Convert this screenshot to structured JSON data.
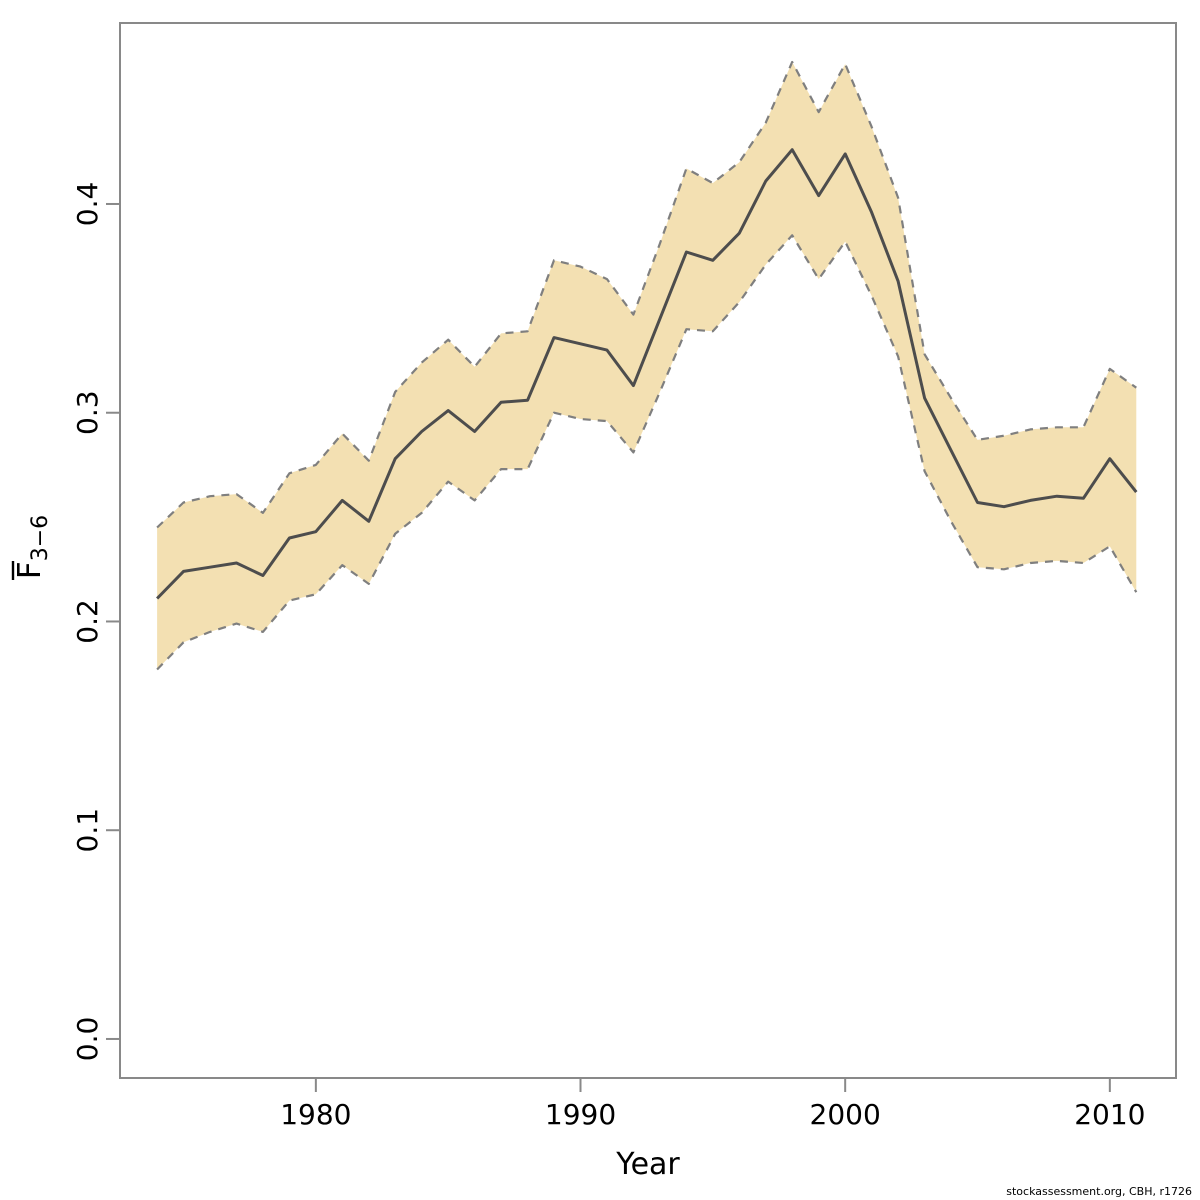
{
  "chart_data": {
    "type": "line",
    "title": "",
    "xlabel": "Year",
    "ylabel": {
      "main": "F",
      "overline": true,
      "sub": "3−6"
    },
    "x_range": [
      1972.6,
      2012.5
    ],
    "y_range": [
      -0.0187,
      0.4867
    ],
    "grid": false,
    "legend_position": "none",
    "x_ticks": {
      "values": [
        1980,
        1990,
        2000,
        2010
      ],
      "labels": [
        "1980",
        "1990",
        "2000",
        "2010"
      ]
    },
    "y_ticks": {
      "values": [
        0.0,
        0.1,
        0.2,
        0.3,
        0.4
      ],
      "labels": [
        "0.0",
        "0.1",
        "0.2",
        "0.3",
        "0.4"
      ]
    },
    "x": [
      1974,
      1975,
      1976,
      1977,
      1978,
      1979,
      1980,
      1981,
      1982,
      1983,
      1984,
      1985,
      1986,
      1987,
      1988,
      1989,
      1990,
      1991,
      1992,
      1993,
      1994,
      1995,
      1996,
      1997,
      1998,
      1999,
      2000,
      2001,
      2002,
      2003,
      2004,
      2005,
      2006,
      2007,
      2008,
      2009,
      2010,
      2011
    ],
    "series": [
      {
        "name": "estimate",
        "role": "center",
        "values": [
          0.211,
          0.224,
          0.226,
          0.228,
          0.222,
          0.24,
          0.243,
          0.258,
          0.248,
          0.278,
          0.291,
          0.301,
          0.291,
          0.305,
          0.306,
          0.336,
          0.333,
          0.33,
          0.313,
          0.345,
          0.377,
          0.373,
          0.386,
          0.411,
          0.426,
          0.404,
          0.424,
          0.396,
          0.363,
          0.307,
          0.282,
          0.257,
          0.255,
          0.258,
          0.26,
          0.259,
          0.278,
          0.262
        ]
      },
      {
        "name": "upper_bound",
        "role": "band-upper",
        "values": [
          0.245,
          0.257,
          0.26,
          0.261,
          0.252,
          0.271,
          0.275,
          0.29,
          0.277,
          0.31,
          0.324,
          0.335,
          0.322,
          0.338,
          0.339,
          0.373,
          0.37,
          0.364,
          0.347,
          0.381,
          0.417,
          0.41,
          0.42,
          0.439,
          0.468,
          0.444,
          0.467,
          0.437,
          0.403,
          0.328,
          0.307,
          0.287,
          0.289,
          0.292,
          0.293,
          0.293,
          0.321,
          0.312
        ]
      },
      {
        "name": "lower_bound",
        "role": "band-lower",
        "values": [
          0.177,
          0.19,
          0.195,
          0.199,
          0.195,
          0.21,
          0.213,
          0.227,
          0.218,
          0.242,
          0.252,
          0.267,
          0.258,
          0.273,
          0.273,
          0.3,
          0.297,
          0.296,
          0.281,
          0.31,
          0.34,
          0.339,
          0.353,
          0.371,
          0.385,
          0.364,
          0.382,
          0.356,
          0.327,
          0.272,
          0.248,
          0.226,
          0.225,
          0.228,
          0.229,
          0.228,
          0.236,
          0.214
        ]
      }
    ],
    "colors": {
      "band_fill": "#F3E0B2",
      "band_edge": "#7F7F7F",
      "center_line": "#4D4D4D",
      "axis": "#898989",
      "label_text": "#000000"
    }
  },
  "footer": {
    "text": "stockassessment.org, CBH, r1726"
  }
}
